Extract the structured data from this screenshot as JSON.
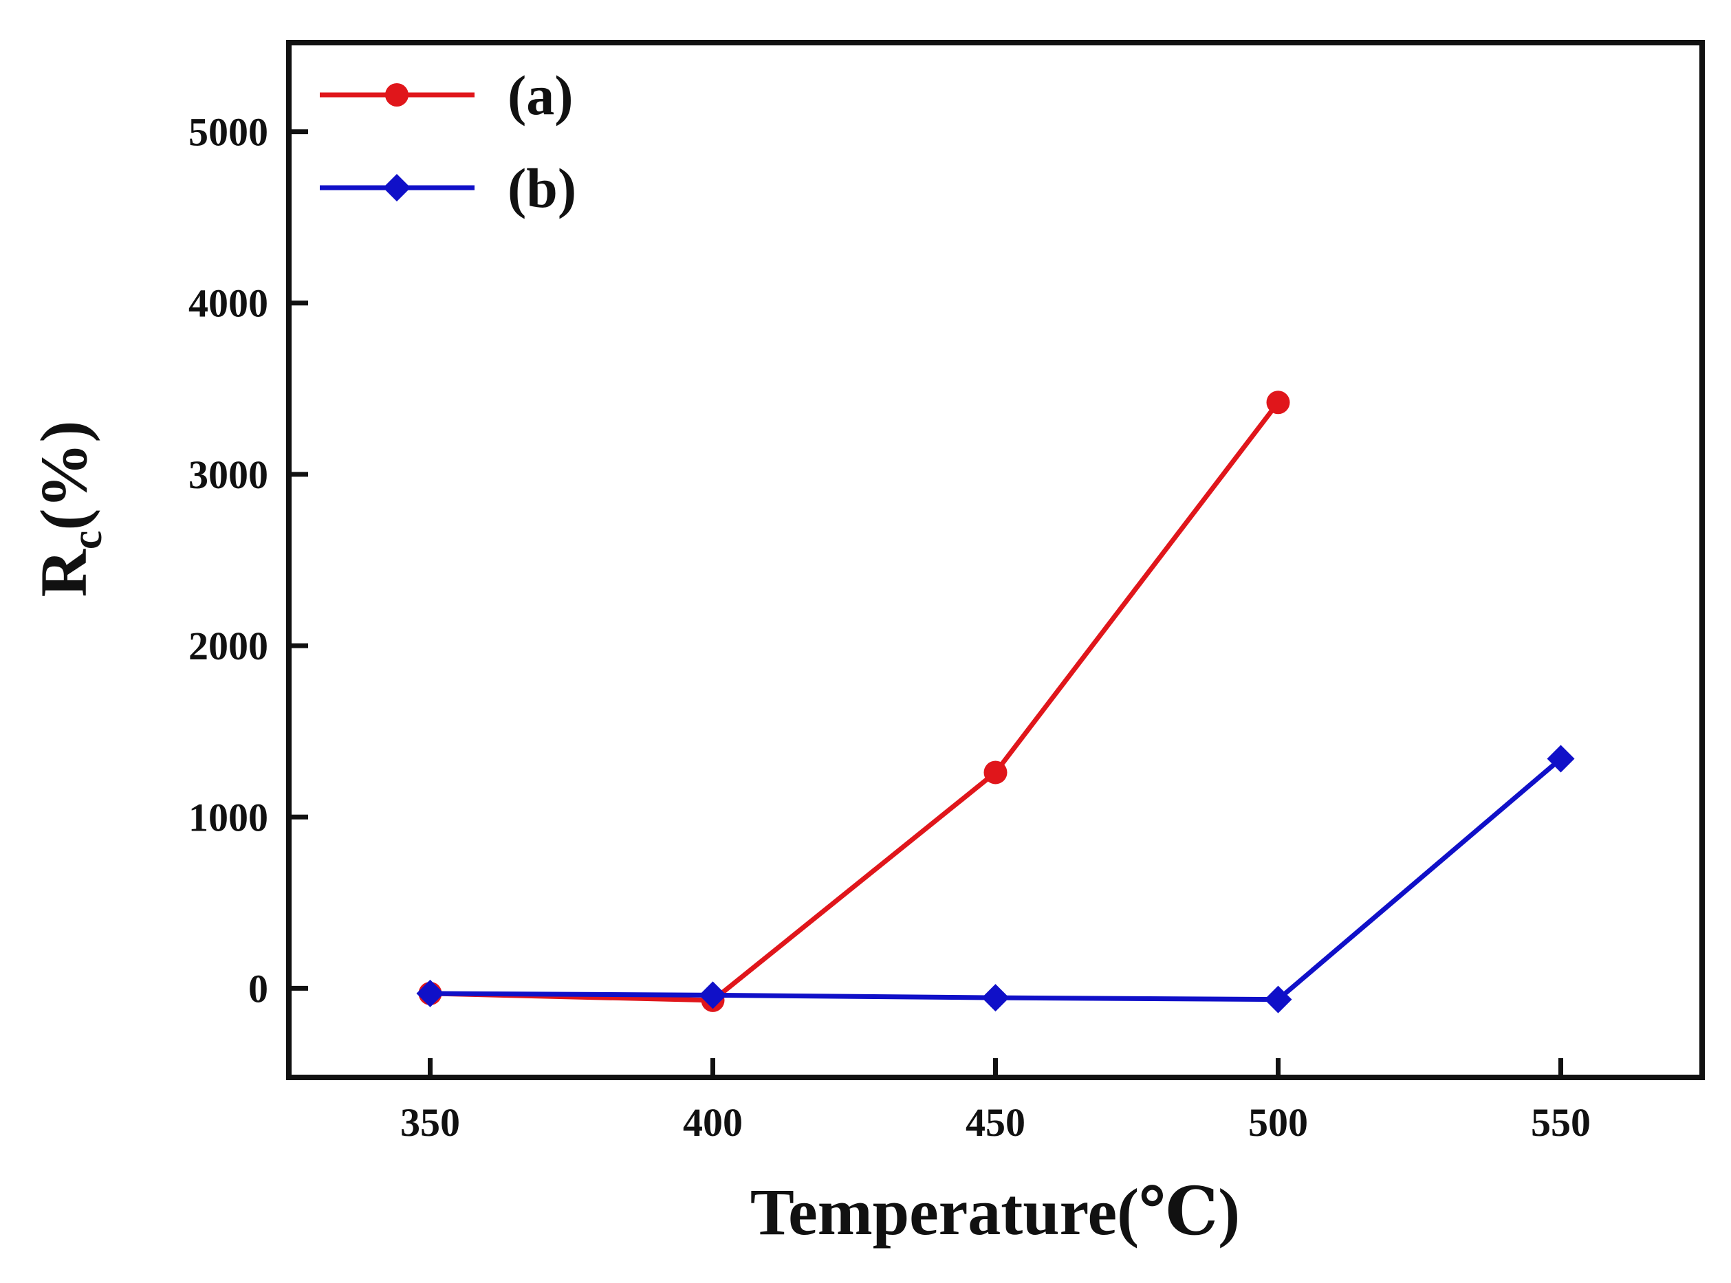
{
  "chart_data": {
    "type": "line",
    "title": "",
    "xlabel": "Temperature(℃)",
    "ylabel": {
      "main": "R",
      "sub": "c",
      "suffix": "(%)"
    },
    "x": [
      350,
      400,
      450,
      500,
      550
    ],
    "xlim": [
      325,
      575
    ],
    "ylim": [
      -520,
      5520
    ],
    "xticks": [
      350,
      400,
      450,
      500,
      550
    ],
    "yticks": [
      0,
      1000,
      2000,
      3000,
      4000,
      5000
    ],
    "grid": false,
    "legend_position": "top-left",
    "series": [
      {
        "name": "(a)",
        "color": "#e0161b",
        "marker": "circle",
        "x": [
          350,
          400,
          450,
          500
        ],
        "values": [
          -30,
          -70,
          1260,
          3420
        ]
      },
      {
        "name": "(b)",
        "color": "#1010c8",
        "marker": "diamond",
        "x": [
          350,
          400,
          450,
          500,
          550
        ],
        "values": [
          -30,
          -40,
          -55,
          -65,
          1340
        ]
      }
    ]
  }
}
